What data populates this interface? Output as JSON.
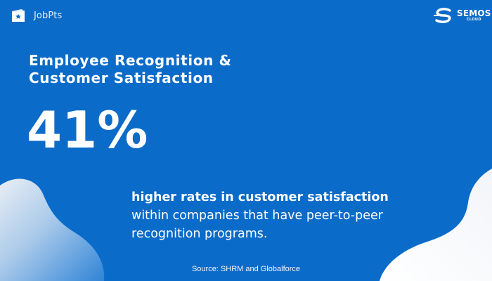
{
  "brand": {
    "name": "JobPts",
    "icon": "star-card-icon"
  },
  "logo": {
    "word": "SEMOS",
    "sub": "CLOUD",
    "icon": "semos-s-mark-icon"
  },
  "headline": {
    "line1": "Employee Recognition &",
    "line2": "Customer Satisfaction"
  },
  "stat": {
    "value": "41%"
  },
  "description": {
    "bold": "higher rates in customer satisfaction",
    "rest": " within companies that have peer-to-peer recognition programs."
  },
  "source": {
    "text": "Source: SHRM and Globalforce"
  },
  "colors": {
    "background": "#0b6bc9",
    "text": "#ffffff",
    "blob_light": "#e8eef5",
    "blob_mid": "#3f8ddb"
  }
}
